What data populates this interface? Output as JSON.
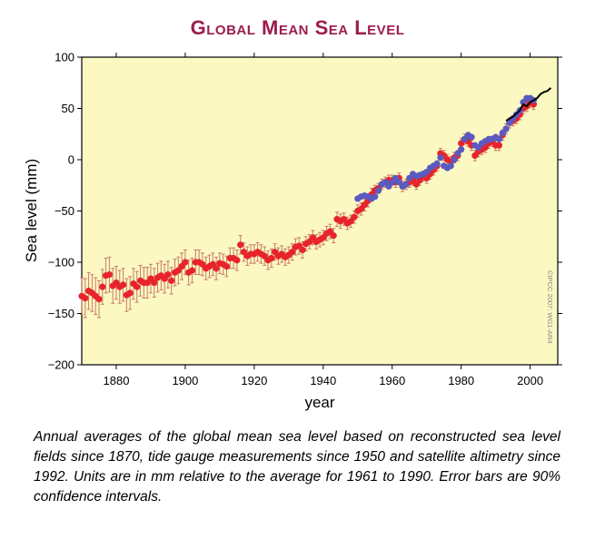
{
  "title": "Global Mean Sea Level",
  "caption": "Annual averages of the global mean sea level based on reconstructed sea level fields since 1870, tide gauge measurements since 1950 and satellite altimetry since 1992. Units are in mm relative to the average for 1961 to 1990. Error bars are 90% confidence intervals.",
  "watermark": "©IPCC 2007: WG1-AR4",
  "colors": {
    "plot_background": "#fbf8c2",
    "reconstructed": "#e8232a",
    "error_bar": "#c87a6a",
    "tide_gauge": "#5a5ac0",
    "satellite": "#000000",
    "title": "#9b1c4d"
  },
  "chart_data": {
    "type": "scatter",
    "title": "Global Mean Sea Level",
    "xlabel": "year",
    "ylabel": "Sea level (mm)",
    "xlim": [
      1870,
      2008
    ],
    "ylim": [
      -200,
      100
    ],
    "xticks": [
      1880,
      1900,
      1920,
      1940,
      1960,
      1980,
      2000
    ],
    "yticks": [
      -200,
      -150,
      -100,
      -50,
      0,
      50,
      100
    ],
    "grid": false,
    "legend": "none",
    "series": [
      {
        "key": "reconstructed",
        "style": "points-with-error-bars",
        "x": [
          1870,
          1871,
          1872,
          1873,
          1874,
          1875,
          1876,
          1877,
          1878,
          1879,
          1880,
          1881,
          1882,
          1883,
          1884,
          1885,
          1886,
          1887,
          1888,
          1889,
          1890,
          1891,
          1892,
          1893,
          1894,
          1895,
          1896,
          1897,
          1898,
          1899,
          1900,
          1901,
          1902,
          1903,
          1904,
          1905,
          1906,
          1907,
          1908,
          1909,
          1910,
          1911,
          1912,
          1913,
          1914,
          1915,
          1916,
          1917,
          1918,
          1919,
          1920,
          1921,
          1922,
          1923,
          1924,
          1925,
          1926,
          1927,
          1928,
          1929,
          1930,
          1931,
          1932,
          1933,
          1934,
          1935,
          1936,
          1937,
          1938,
          1939,
          1940,
          1941,
          1942,
          1943,
          1944,
          1945,
          1946,
          1947,
          1948,
          1949,
          1950,
          1951,
          1952,
          1953,
          1954,
          1955,
          1956,
          1957,
          1958,
          1959,
          1960,
          1961,
          1962,
          1963,
          1964,
          1965,
          1966,
          1967,
          1968,
          1969,
          1970,
          1971,
          1972,
          1973,
          1974,
          1975,
          1976,
          1977,
          1978,
          1979,
          1980,
          1981,
          1982,
          1983,
          1984,
          1985,
          1986,
          1987,
          1988,
          1989,
          1990,
          1991,
          1992,
          1993,
          1994,
          1995,
          1996,
          1997,
          1998,
          1999,
          2000,
          2001
        ],
        "y": [
          -133,
          -135,
          -128,
          -130,
          -133,
          -136,
          -124,
          -113,
          -112,
          -123,
          -120,
          -124,
          -122,
          -132,
          -130,
          -121,
          -124,
          -118,
          -120,
          -120,
          -116,
          -120,
          -115,
          -113,
          -116,
          -112,
          -118,
          -110,
          -108,
          -104,
          -100,
          -110,
          -108,
          -100,
          -100,
          -102,
          -106,
          -104,
          -102,
          -106,
          -101,
          -102,
          -104,
          -96,
          -96,
          -98,
          -83,
          -90,
          -94,
          -92,
          -92,
          -90,
          -92,
          -94,
          -98,
          -96,
          -90,
          -94,
          -92,
          -95,
          -93,
          -90,
          -85,
          -84,
          -88,
          -82,
          -80,
          -76,
          -80,
          -78,
          -76,
          -72,
          -70,
          -74,
          -58,
          -60,
          -58,
          -62,
          -60,
          -56,
          -50,
          -48,
          -44,
          -40,
          -34,
          -30,
          -28,
          -24,
          -22,
          -20,
          -20,
          -22,
          -18,
          -26,
          -24,
          -22,
          -20,
          -24,
          -20,
          -16,
          -18,
          -14,
          -10,
          -6,
          6,
          4,
          0,
          -2,
          2,
          4,
          16,
          20,
          18,
          14,
          4,
          8,
          10,
          12,
          16,
          18,
          14,
          14,
          24,
          30,
          36,
          38,
          40,
          44,
          50,
          52,
          56,
          54
        ],
        "err": [
          18,
          19,
          18,
          18,
          18,
          18,
          17,
          17,
          17,
          17,
          16,
          16,
          16,
          16,
          16,
          15,
          15,
          15,
          15,
          15,
          14,
          14,
          14,
          14,
          14,
          13,
          13,
          13,
          13,
          13,
          12,
          12,
          12,
          12,
          12,
          11,
          11,
          11,
          11,
          11,
          10,
          10,
          10,
          10,
          10,
          10,
          9,
          9,
          9,
          9,
          9,
          9,
          9,
          9,
          9,
          9,
          8,
          8,
          8,
          8,
          8,
          8,
          8,
          8,
          8,
          7,
          7,
          7,
          7,
          7,
          7,
          7,
          7,
          7,
          7,
          7,
          6,
          6,
          6,
          6,
          6,
          6,
          6,
          6,
          6,
          5,
          5,
          5,
          5,
          5,
          5,
          5,
          5,
          5,
          5,
          5,
          5,
          5,
          5,
          5,
          5,
          5,
          5,
          5,
          5,
          5,
          5,
          5,
          5,
          5,
          5,
          5,
          5,
          5,
          5,
          5,
          5,
          5,
          5,
          5,
          5,
          5,
          5,
          5,
          5,
          5,
          5,
          5,
          5,
          5,
          5,
          5
        ]
      },
      {
        "key": "tide_gauge",
        "style": "points",
        "x": [
          1950,
          1951,
          1952,
          1953,
          1954,
          1955,
          1956,
          1957,
          1958,
          1959,
          1960,
          1961,
          1962,
          1963,
          1964,
          1965,
          1966,
          1967,
          1968,
          1969,
          1970,
          1971,
          1972,
          1973,
          1974,
          1975,
          1976,
          1977,
          1978,
          1979,
          1980,
          1981,
          1982,
          1983,
          1984,
          1985,
          1986,
          1987,
          1988,
          1989,
          1990,
          1991,
          1992,
          1993,
          1994,
          1995,
          1996,
          1997,
          1998,
          1999,
          2000,
          2001
        ],
        "y": [
          -38,
          -36,
          -35,
          -36,
          -38,
          -36,
          -30,
          -24,
          -22,
          -26,
          -22,
          -18,
          -22,
          -26,
          -24,
          -18,
          -14,
          -16,
          -15,
          -14,
          -12,
          -8,
          -6,
          -4,
          2,
          -6,
          -8,
          -6,
          0,
          6,
          10,
          20,
          24,
          22,
          14,
          12,
          16,
          18,
          20,
          20,
          22,
          20,
          26,
          30,
          36,
          40,
          44,
          48,
          56,
          60,
          60,
          58
        ]
      },
      {
        "key": "satellite",
        "style": "line",
        "x": [
          1993,
          1994,
          1995,
          1996,
          1997,
          1998,
          1999,
          2000,
          2001,
          2002,
          2003,
          2004,
          2005,
          2006
        ],
        "y": [
          38,
          40,
          42,
          45,
          48,
          54,
          52,
          56,
          58,
          60,
          64,
          66,
          67,
          70
        ]
      }
    ]
  }
}
